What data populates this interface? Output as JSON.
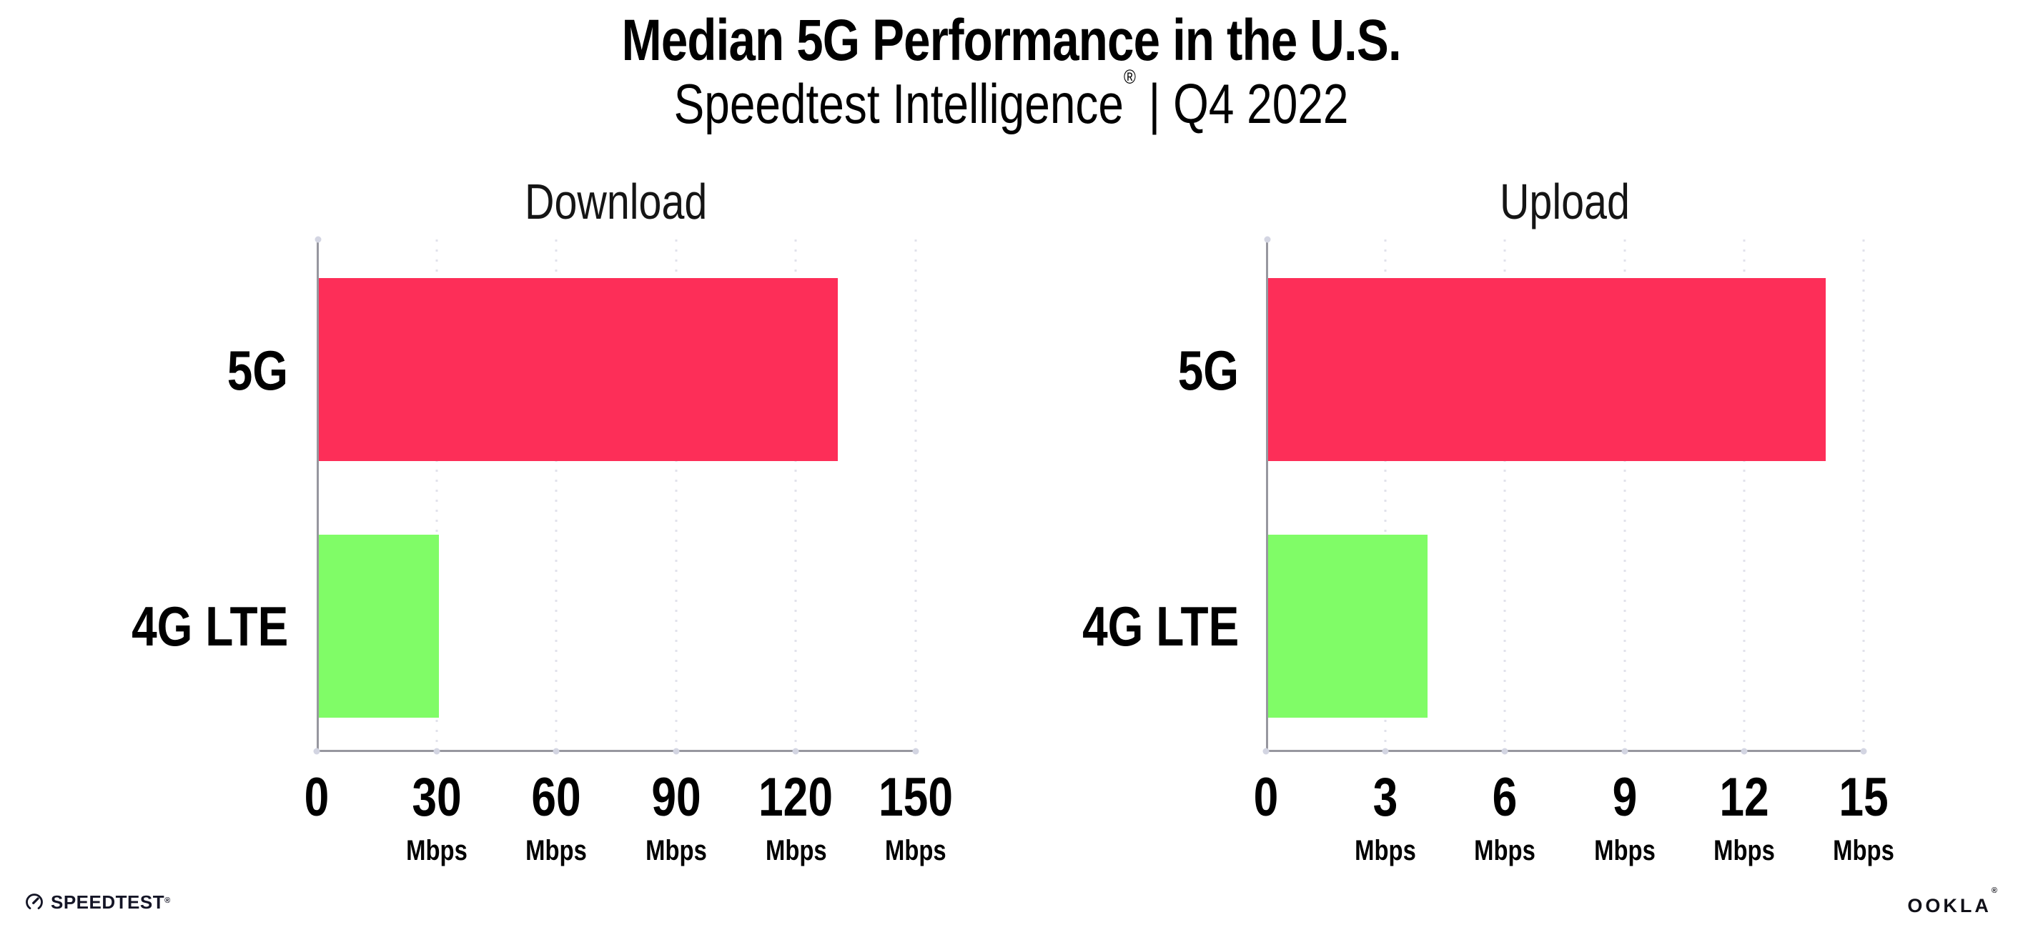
{
  "header": {
    "title": "Median 5G Performance in the U.S.",
    "subtitle_brand": "Speedtest Intelligence",
    "subtitle_reg": "®",
    "subtitle_tail": " | Q4 2022"
  },
  "chart_data": [
    {
      "type": "bar",
      "orientation": "horizontal",
      "title": "Download",
      "categories": [
        "5G",
        "4G LTE"
      ],
      "values": [
        130,
        30
      ],
      "unit": "Mbps",
      "xlim": [
        0,
        150
      ],
      "xticks": [
        0,
        30,
        60,
        90,
        120,
        150
      ],
      "bar_colors": [
        "#fd2e58",
        "#80fc67"
      ],
      "grid": "vertical-dotted",
      "legend": "none"
    },
    {
      "type": "bar",
      "orientation": "horizontal",
      "title": "Upload",
      "categories": [
        "5G",
        "4G LTE"
      ],
      "values": [
        14,
        4
      ],
      "unit": "Mbps",
      "xlim": [
        0,
        15
      ],
      "xticks": [
        0,
        3,
        6,
        9,
        12,
        15
      ],
      "bar_colors": [
        "#fd2e58",
        "#80fc67"
      ],
      "grid": "vertical-dotted",
      "legend": "none"
    }
  ],
  "footer": {
    "speedtest_label": "SPEEDTEST",
    "speedtest_mark": "®",
    "ookla_label": "OOKLA",
    "ookla_mark": "®"
  }
}
